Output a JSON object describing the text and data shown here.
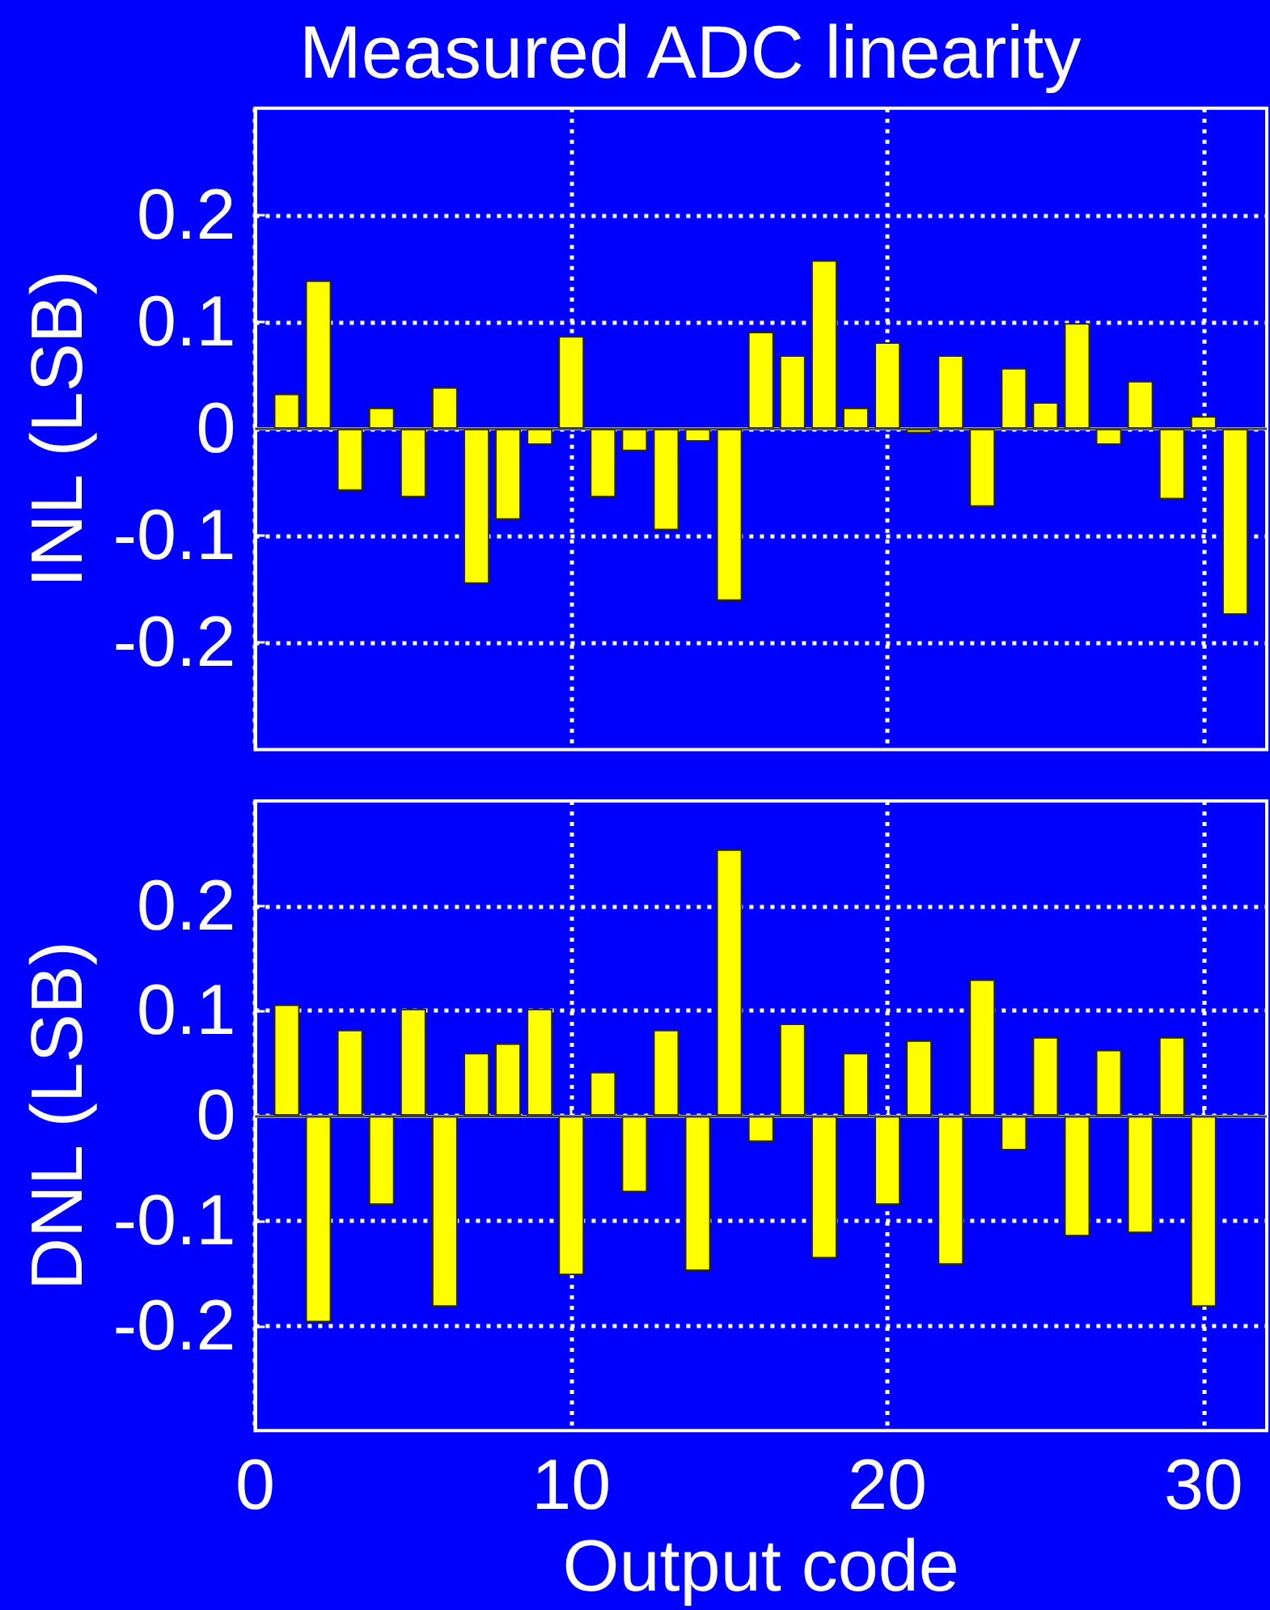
{
  "chart_data": [
    {
      "type": "bar",
      "title": "Measured ADC linearity",
      "ylabel": "INL (LSB)",
      "x": [
        1,
        2,
        3,
        4,
        5,
        6,
        7,
        8,
        9,
        10,
        11,
        12,
        13,
        14,
        15,
        16,
        17,
        18,
        19,
        20,
        21,
        22,
        23,
        24,
        25,
        26,
        27,
        28,
        29,
        30,
        31
      ],
      "values": [
        0.033,
        0.139,
        -0.058,
        0.02,
        -0.064,
        0.039,
        -0.145,
        -0.085,
        -0.015,
        0.087,
        -0.064,
        -0.021,
        -0.095,
        -0.012,
        -0.161,
        0.091,
        0.069,
        0.158,
        0.02,
        0.081,
        -0.004,
        0.069,
        -0.073,
        0.057,
        0.025,
        0.099,
        -0.015,
        0.045,
        -0.066,
        0.012,
        -0.174
      ],
      "color": "#ffff00",
      "xlim": [
        0,
        32
      ],
      "xticks": [
        0,
        10,
        20,
        30
      ],
      "ylim": [
        -0.3,
        0.3
      ],
      "yticks": [
        -0.2,
        -0.1,
        0,
        0.1,
        0.2
      ],
      "grid": true,
      "tick_labels": "y",
      "ref_lines": [
        {
          "axis": "y",
          "value": 0,
          "color": "#404040"
        }
      ]
    },
    {
      "type": "bar",
      "xlabel": "Output code",
      "ylabel": "DNL (LSB)",
      "x": [
        1,
        2,
        3,
        4,
        5,
        6,
        7,
        8,
        9,
        10,
        11,
        12,
        13,
        14,
        15,
        16,
        17,
        18,
        19,
        20,
        21,
        22,
        23,
        24,
        25,
        26,
        27,
        28,
        29,
        30
      ],
      "values": [
        0.106,
        -0.197,
        0.082,
        -0.085,
        0.102,
        -0.182,
        0.06,
        0.069,
        0.102,
        -0.152,
        0.042,
        -0.073,
        0.082,
        -0.148,
        0.254,
        -0.025,
        0.088,
        -0.136,
        0.06,
        -0.085,
        0.072,
        -0.142,
        0.13,
        -0.033,
        0.075,
        -0.115,
        0.063,
        -0.112,
        0.075,
        -0.182
      ],
      "color": "#ffff00",
      "xlim": [
        0,
        32
      ],
      "xticks": [
        0,
        10,
        20,
        30
      ],
      "ylim": [
        -0.3,
        0.3
      ],
      "yticks": [
        -0.2,
        -0.1,
        0,
        0.1,
        0.2
      ],
      "grid": true,
      "ref_lines": [
        {
          "axis": "y",
          "value": 0,
          "color": "#404040"
        }
      ]
    }
  ]
}
